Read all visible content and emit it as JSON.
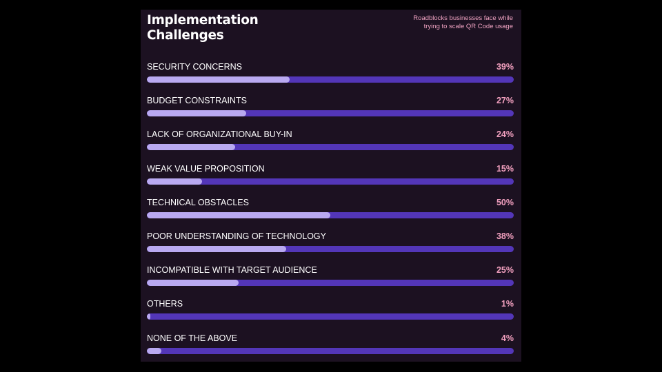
{
  "chart_data": {
    "type": "bar",
    "orientation": "horizontal",
    "title": "Implementation Challenges",
    "subtitle": "Roadblocks businesses face while trying to scale QR Code usage",
    "value_suffix": "%",
    "xlim": [
      0,
      100
    ],
    "categories": [
      "SECURITY CONCERNS",
      "BUDGET CONSTRAINTS",
      "LACK OF ORGANIZATIONAL BUY-IN",
      "WEAK VALUE PROPOSITION",
      "TECHNICAL OBSTACLES",
      "POOR UNDERSTANDING OF TECHNOLOGY",
      "INCOMPATIBLE WITH TARGET AUDIENCE",
      "OTHERS",
      "NONE OF THE ABOVE"
    ],
    "values": [
      39,
      27,
      24,
      15,
      50,
      38,
      25,
      1,
      4
    ],
    "labels": [
      "39%",
      "27%",
      "24%",
      "15%",
      "50%",
      "38%",
      "25%",
      "1%",
      "4%"
    ]
  },
  "colors": {
    "card_background": "#1c1121",
    "track": "#5336b8",
    "fill": "#b9a9f1",
    "value_text": "#f2a0bf",
    "subtitle_text": "#f0a3c2"
  }
}
